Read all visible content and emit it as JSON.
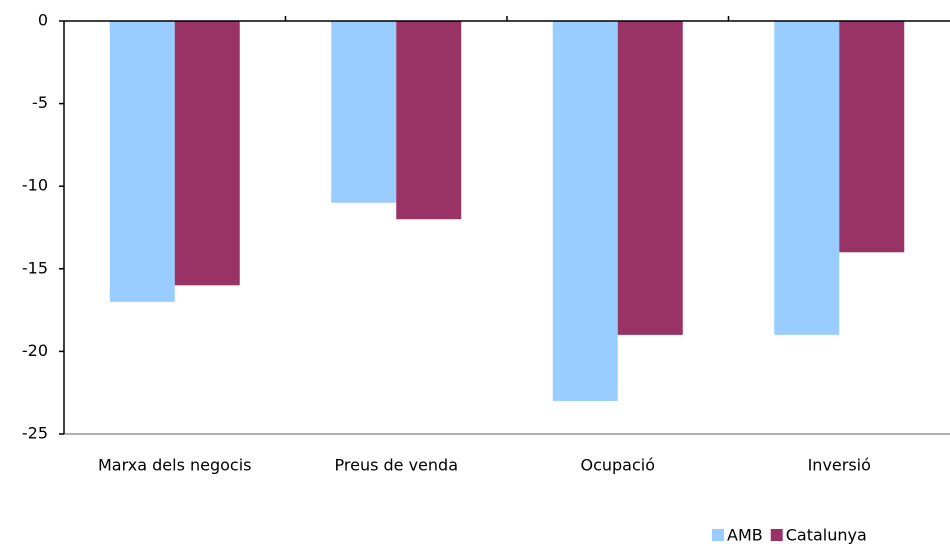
{
  "chart_data": {
    "type": "bar",
    "categories": [
      "Marxa dels negocis",
      "Preus de venda",
      "Ocupació",
      "Inversió"
    ],
    "series": [
      {
        "name": "AMB",
        "color": "#99ccff",
        "values": [
          -17,
          -11,
          -23,
          -19
        ]
      },
      {
        "name": "Catalunya",
        "color": "#993366",
        "values": [
          -16,
          -12,
          -19,
          -14
        ]
      }
    ],
    "ylim": [
      -25,
      0
    ],
    "yticks": [
      0,
      -5,
      -10,
      -15,
      -20,
      -25
    ],
    "grid": false,
    "legend": "bottom-right"
  }
}
